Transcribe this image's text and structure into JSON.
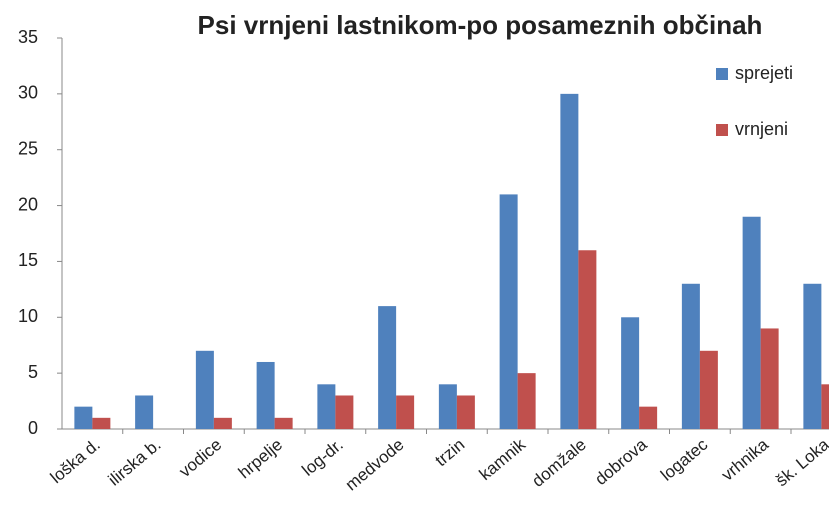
{
  "chart_data": {
    "type": "bar",
    "title": "Psi vrnjeni lastnikom-po posameznih občinah",
    "categories": [
      "loška d.",
      "ilirska b.",
      "vodice",
      "hrpelje",
      "log-dr.",
      "medvode",
      "trzin",
      "kamnik",
      "domžale",
      "dobrova",
      "logatec",
      "vrhnika",
      "šk. Loka"
    ],
    "series": [
      {
        "name": "sprejeti",
        "color": "#4f81bd",
        "values": [
          2,
          3,
          7,
          6,
          4,
          11,
          4,
          21,
          30,
          10,
          13,
          19,
          13
        ]
      },
      {
        "name": "vrnjeni",
        "color": "#c0504d",
        "values": [
          1,
          0,
          1,
          1,
          3,
          3,
          3,
          5,
          16,
          2,
          7,
          9,
          4
        ]
      }
    ],
    "ylim": [
      0,
      35
    ],
    "yticks": [
      0,
      5,
      10,
      15,
      20,
      25,
      30,
      35
    ],
    "legend": "upper right"
  }
}
